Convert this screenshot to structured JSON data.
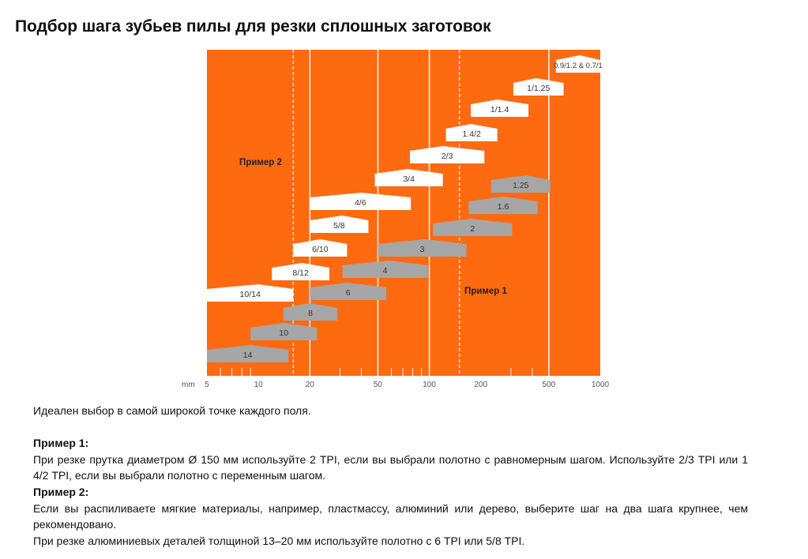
{
  "page": {
    "title": "Подбор шага зубьев пилы для резки сплошных заготовок"
  },
  "colors": {
    "background_orange": "#fe6a10",
    "white_band": "#ffffff",
    "grey_band": "#a6a6a6",
    "grid_line": "#f4efe6",
    "axis_text": "#555555",
    "label_dark": "#333333",
    "example_label": "#222222"
  },
  "chart_data": {
    "type": "range-bands",
    "x_scale": "log",
    "xlim": [
      5,
      1000
    ],
    "x_unit": "mm",
    "x_ticks": [
      5,
      10,
      20,
      50,
      100,
      200,
      500,
      1000
    ],
    "x_minor_ticks": [
      6,
      7,
      8,
      9,
      30,
      40,
      60,
      70,
      80,
      90,
      300,
      400
    ],
    "solid_lines_x": [
      20,
      50,
      100,
      500
    ],
    "dashed_lines_x": [
      16,
      150
    ],
    "variable_pitch": [
      {
        "label": "0.9/1.2 & 0.7/1",
        "x_start": 550,
        "x_end": 1000,
        "peak": 760
      },
      {
        "label": "1/1.25",
        "x_start": 310,
        "x_end": 610,
        "peak": 420
      },
      {
        "label": "1/1.4",
        "x_start": 175,
        "x_end": 380,
        "peak": 250
      },
      {
        "label": "1.4/2",
        "x_start": 125,
        "x_end": 250,
        "peak": 175
      },
      {
        "label": "2/3",
        "x_start": 77,
        "x_end": 210,
        "peak": 120
      },
      {
        "label": "3/4",
        "x_start": 48,
        "x_end": 120,
        "peak": 75
      },
      {
        "label": "4/6",
        "x_start": 20,
        "x_end": 78,
        "peak": 40
      },
      {
        "label": "5/8",
        "x_start": 20,
        "x_end": 44,
        "peak": 31
      },
      {
        "label": "6/10",
        "x_start": 16,
        "x_end": 33,
        "peak": 23
      },
      {
        "label": "8/12",
        "x_start": 12,
        "x_end": 26,
        "peak": 18
      },
      {
        "label": "10/14",
        "x_start": 5,
        "x_end": 16,
        "peak": 10
      }
    ],
    "constant_pitch": [
      {
        "label": "1.25",
        "x_start": 230,
        "x_end": 510,
        "peak": 370
      },
      {
        "label": "1.6",
        "x_start": 170,
        "x_end": 430,
        "peak": 270
      },
      {
        "label": "2",
        "x_start": 105,
        "x_end": 305,
        "peak": 175
      },
      {
        "label": "3",
        "x_start": 50,
        "x_end": 165,
        "peak": 95
      },
      {
        "label": "4",
        "x_start": 31,
        "x_end": 98,
        "peak": 58
      },
      {
        "label": "6",
        "x_start": 20,
        "x_end": 56,
        "peak": 33
      },
      {
        "label": "8",
        "x_start": 14,
        "x_end": 29,
        "peak": 20
      },
      {
        "label": "10",
        "x_start": 9,
        "x_end": 22,
        "peak": 14
      },
      {
        "label": "14",
        "x_start": 5,
        "x_end": 15,
        "peak": 9
      }
    ],
    "annotations": [
      {
        "text": "Пример 2",
        "x": 10,
        "position": "upper-left"
      },
      {
        "text": "Пример 1",
        "x": 200,
        "position": "lower-right"
      }
    ]
  },
  "description": {
    "intro": "Идеален выбор в самой широкой точке каждого поля.",
    "example1_title": "Пример 1:",
    "example1_text": "При резке прутка диаметром Ø 150 мм используйте 2 TPI, если вы выбрали полотно с равномерным шагом. Используйте 2/3 TPI или 1 4/2 TPI, если вы выбрали полотно с переменным шагом.",
    "example2_title": "Пример 2:",
    "example2_text1": "Если вы распиливаете мягкие материалы, например, пластмассу, алюминий или дерево, выберите шаг на два шага крупнее, чем рекомендовано.",
    "example2_text2": "При резке алюминиевых деталей толщиной 13–20 мм используйте полотно с 6 TPI или 5/8 TPI."
  }
}
